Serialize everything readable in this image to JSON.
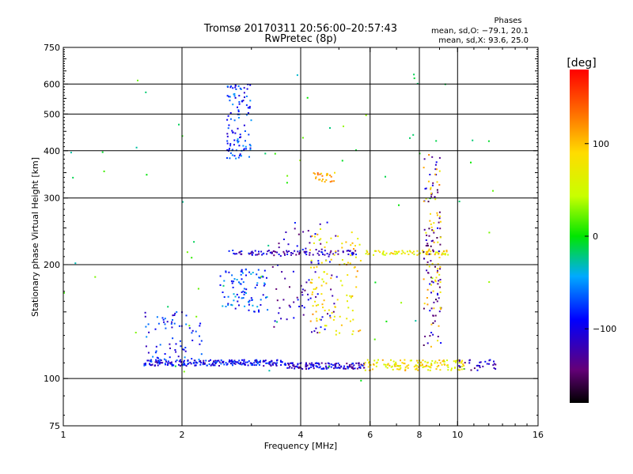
{
  "header": {
    "title_line1": "Tromsø 20170311 20:56:00–20:57:43",
    "title_line2": "RwPretec (8p)"
  },
  "phase_box": {
    "title": "Phases",
    "o_line": "mean, sd,O: −79.1, 20.1",
    "x_line": "mean, sd,X:  93.6, 25.0"
  },
  "colorbar": {
    "label": "[deg]",
    "min": -180,
    "max": 180,
    "tick_values": [
      100,
      0,
      -100
    ],
    "tick_labels": [
      "100",
      "0",
      "−100"
    ]
  },
  "chart_data": {
    "type": "scatter",
    "xlabel": "Frequency [MHz]",
    "ylabel": "Stationary phase Virtual Height [km]",
    "x_scale": "log",
    "y_scale": "log",
    "xlim": [
      1,
      16
    ],
    "ylim": [
      75,
      750
    ],
    "x_ticks": [
      1,
      2,
      4,
      6,
      8,
      10,
      16
    ],
    "x_tick_labels": [
      "1",
      "2",
      "4",
      "6",
      "8",
      "10",
      "16"
    ],
    "y_ticks": [
      75,
      100,
      200,
      300,
      400,
      500,
      600,
      750
    ],
    "y_tick_labels": [
      "75",
      "100",
      "200",
      "300",
      "400",
      "500",
      "600",
      "750"
    ],
    "grid": true,
    "point_color_by": "phase [deg]",
    "clusters": [
      {
        "x_from": 1.6,
        "x_to": 3.6,
        "y_from": 108,
        "y_to": 112,
        "n": 220,
        "phase": -95
      },
      {
        "x_from": 3.6,
        "x_to": 5.8,
        "y_from": 106,
        "y_to": 110,
        "n": 140,
        "phase": -110
      },
      {
        "x_from": 5.8,
        "x_to": 10.5,
        "y_from": 105,
        "y_to": 112,
        "n": 140,
        "phase": 80
      },
      {
        "x_from": 1.6,
        "x_to": 2.3,
        "y_from": 112,
        "y_to": 150,
        "n": 70,
        "phase": -85
      },
      {
        "x_from": 2.5,
        "x_to": 3.3,
        "y_from": 150,
        "y_to": 195,
        "n": 90,
        "phase": -70
      },
      {
        "x_from": 2.6,
        "x_to": 5.6,
        "y_from": 212,
        "y_to": 218,
        "n": 90,
        "phase": -110
      },
      {
        "x_from": 5.8,
        "x_to": 9.5,
        "y_from": 212,
        "y_to": 218,
        "n": 70,
        "phase": 75
      },
      {
        "x_from": 2.6,
        "x_to": 3.0,
        "y_from": 380,
        "y_to": 600,
        "n": 110,
        "phase": -80
      },
      {
        "x_from": 3.4,
        "x_to": 5.0,
        "y_from": 130,
        "y_to": 260,
        "n": 90,
        "phase": -115
      },
      {
        "x_from": 4.2,
        "x_to": 5.7,
        "y_from": 130,
        "y_to": 250,
        "n": 110,
        "phase": 90
      },
      {
        "x_from": 4.3,
        "x_to": 4.9,
        "y_from": 330,
        "y_to": 350,
        "n": 25,
        "phase": 105
      },
      {
        "x_from": 8.2,
        "x_to": 9.1,
        "y_from": 120,
        "y_to": 390,
        "n": 90,
        "phase": -125
      },
      {
        "x_from": 8.2,
        "x_to": 9.1,
        "y_from": 120,
        "y_to": 390,
        "n": 60,
        "phase": 95
      },
      {
        "x_from": 10.0,
        "x_to": 12.5,
        "y_from": 105,
        "y_to": 112,
        "n": 30,
        "phase": -120
      },
      {
        "x_from": 1.0,
        "x_to": 12.5,
        "y_from": 95,
        "y_to": 650,
        "n": 70,
        "phase": 0
      }
    ]
  }
}
